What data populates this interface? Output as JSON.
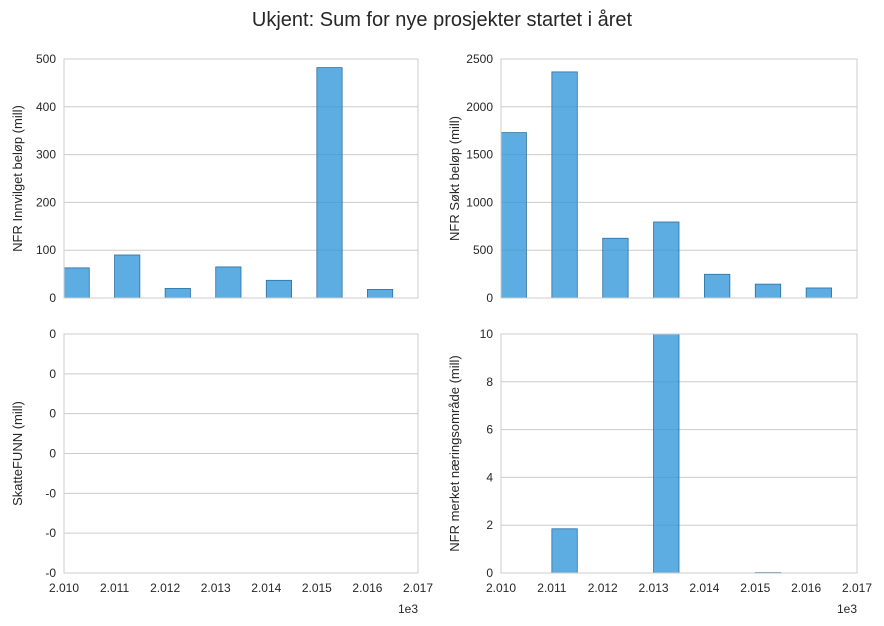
{
  "title": "Ukjent: Sum for nye prosjekter startet i året",
  "colors": {
    "bar": "#3498db",
    "grid": "#cccccc"
  },
  "chart_data": [
    {
      "type": "bar",
      "title": "",
      "xlabel": "",
      "ylabel": "NFR Innvilget beløp (mill)",
      "x": [
        2010,
        2011,
        2012,
        2013,
        2014,
        2015,
        2016
      ],
      "values": [
        63,
        90,
        20,
        65,
        37,
        482,
        18
      ],
      "ylim": [
        0,
        500
      ],
      "yticks": [
        0,
        100,
        200,
        300,
        400,
        500
      ],
      "ytick_labels": [
        "0",
        "100",
        "200",
        "300",
        "400",
        "500"
      ],
      "xlim": [
        2010,
        2017
      ],
      "xtick_labels": [],
      "grid": true
    },
    {
      "type": "bar",
      "title": "",
      "xlabel": "",
      "ylabel": "NFR Søkt beløp (mill)",
      "x": [
        2010,
        2011,
        2012,
        2013,
        2014,
        2015,
        2016
      ],
      "values": [
        1730,
        2365,
        625,
        795,
        248,
        145,
        105
      ],
      "ylim": [
        0,
        2500
      ],
      "yticks": [
        0,
        500,
        1000,
        1500,
        2000,
        2500
      ],
      "ytick_labels": [
        "0",
        "500",
        "1000",
        "1500",
        "2000",
        "2500"
      ],
      "xlim": [
        2010,
        2017
      ],
      "xtick_labels": [],
      "grid": true
    },
    {
      "type": "bar",
      "title": "",
      "xlabel": "",
      "ylabel": "SkatteFUNN (mill)",
      "x": [
        2010,
        2011,
        2012,
        2013,
        2014,
        2015,
        2016
      ],
      "values": [
        0,
        0,
        0,
        0,
        0,
        0,
        0
      ],
      "ylim": [
        -0.06,
        0.06
      ],
      "yticks": [
        -0.06,
        -0.04,
        -0.02,
        0,
        0.02,
        0.04,
        0.06
      ],
      "ytick_labels": [
        "-0",
        "-0",
        "-0",
        "0",
        "0",
        "0",
        "0"
      ],
      "xlim": [
        2010,
        2017
      ],
      "xtick_labels": [
        "2.010",
        "2.011",
        "2.012",
        "2.013",
        "2.014",
        "2.015",
        "2.016",
        "2.017"
      ],
      "x_offset_label": "1e3",
      "grid": true
    },
    {
      "type": "bar",
      "title": "",
      "xlabel": "",
      "ylabel": "NFR merket næringsområde (mill)",
      "x": [
        2010,
        2011,
        2012,
        2013,
        2014,
        2015,
        2016
      ],
      "values": [
        0,
        1.85,
        0,
        10,
        0,
        0.02,
        0
      ],
      "ylim": [
        0,
        10
      ],
      "yticks": [
        0,
        2,
        4,
        6,
        8,
        10
      ],
      "ytick_labels": [
        "0",
        "2",
        "4",
        "6",
        "8",
        "10"
      ],
      "xlim": [
        2010,
        2017
      ],
      "xtick_labels": [
        "2.010",
        "2.011",
        "2.012",
        "2.013",
        "2.014",
        "2.015",
        "2.016",
        "2.017"
      ],
      "x_offset_label": "1e3",
      "grid": true
    }
  ]
}
